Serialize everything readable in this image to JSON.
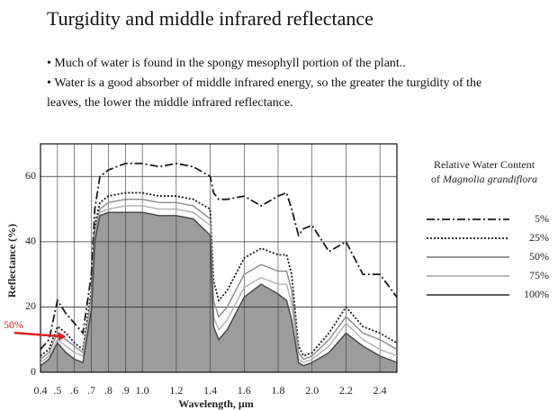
{
  "slide": {
    "title": "Turgidity and middle infrared reflectance",
    "bullets": [
      "Much of water is found in the spongy mesophyll portion of the plant..",
      "Water is a good absorber of middle infrared energy, so the greater the turgidity of the leaves, the lower the middle infrared reflectance."
    ]
  },
  "chart_data": {
    "type": "line",
    "xlabel": "Wavelength, µm",
    "ylabel": "Reflectance (%)",
    "legend_title": [
      "Relative Water Content",
      "of",
      "Magnolia grandiflora"
    ],
    "x": [
      0.4,
      0.45,
      0.5,
      0.55,
      0.6,
      0.65,
      0.7,
      0.72,
      0.75,
      0.8,
      0.9,
      1.0,
      1.1,
      1.2,
      1.3,
      1.4,
      1.42,
      1.45,
      1.5,
      1.6,
      1.7,
      1.8,
      1.85,
      1.88,
      1.92,
      1.95,
      2.0,
      2.1,
      2.2,
      2.3,
      2.4,
      2.5
    ],
    "series": [
      {
        "name": "5%",
        "color": "#1a1a1a",
        "dash": "dash-dot",
        "values": [
          7,
          10,
          22,
          18,
          15,
          12,
          30,
          50,
          60,
          62,
          64,
          64,
          63,
          64,
          63,
          60,
          55,
          53,
          53,
          54,
          51,
          54,
          55,
          50,
          42,
          44,
          45,
          37,
          40,
          30,
          30,
          23
        ]
      },
      {
        "name": "25%",
        "color": "#1a1a1a",
        "dash": "dotted",
        "values": [
          5,
          7,
          14,
          12,
          9,
          7,
          25,
          45,
          52,
          54,
          55,
          55,
          54,
          54,
          53,
          50,
          28,
          22,
          25,
          35,
          38,
          36,
          36,
          30,
          8,
          5,
          6,
          12,
          20,
          14,
          12,
          9
        ]
      },
      {
        "name": "50%",
        "color": "#8a8a8a",
        "dash": "solid",
        "values": [
          4,
          6,
          12,
          10,
          8,
          6,
          23,
          43,
          50,
          52,
          53,
          53,
          52,
          52,
          51,
          47,
          22,
          17,
          20,
          30,
          33,
          31,
          31,
          25,
          6,
          4,
          5,
          10,
          17,
          12,
          10,
          7
        ]
      },
      {
        "name": "75%",
        "color": "#b0b0b0",
        "dash": "solid",
        "values": [
          3,
          5,
          10,
          8,
          6,
          5,
          21,
          41,
          49,
          50,
          51,
          51,
          50,
          50,
          49,
          45,
          17,
          13,
          16,
          26,
          29,
          27,
          27,
          21,
          4,
          3,
          4,
          8,
          15,
          10,
          7,
          5
        ]
      },
      {
        "name": "100%",
        "color": "#444444",
        "dash": "solid",
        "fill": "#9c9c9c",
        "values": [
          2,
          4,
          9,
          6,
          4,
          3,
          19,
          40,
          48,
          49,
          49,
          49,
          48,
          48,
          47,
          42,
          14,
          10,
          13,
          23,
          27,
          24,
          22,
          16,
          3,
          2,
          3,
          6,
          12,
          8,
          5,
          3
        ]
      }
    ],
    "xlim": [
      0.4,
      2.5
    ],
    "xticks": [
      0.4,
      {
        "value": 0.5,
        "label": ".5"
      },
      {
        "value": 0.6,
        "label": ".6"
      },
      {
        "value": 0.7,
        "label": ".7"
      },
      {
        "value": 0.8,
        "label": ".8"
      },
      {
        "value": 0.9,
        "label": ".9"
      },
      {
        "value": 1.0,
        "label": "1.0"
      },
      1.2,
      1.4,
      1.6,
      1.8,
      {
        "value": 2.0,
        "label": "2.0"
      },
      2.2,
      2.4
    ],
    "ylim": [
      0,
      70
    ],
    "yticks": [
      0,
      20,
      40,
      60
    ],
    "grid": true,
    "annotation": {
      "text": "50%",
      "x": 0.55,
      "y": 11,
      "color": "#e02020"
    }
  }
}
